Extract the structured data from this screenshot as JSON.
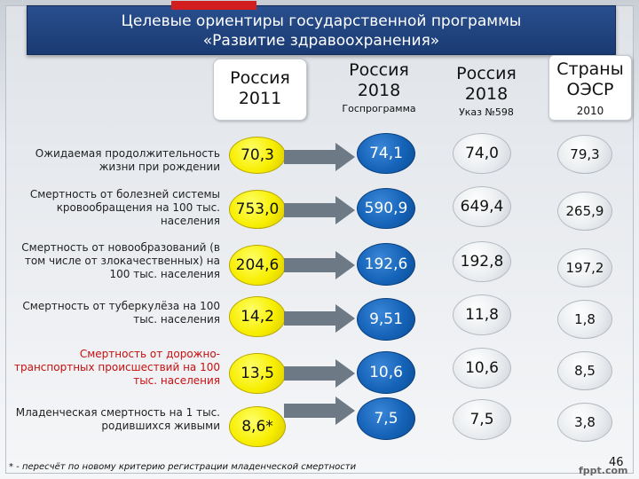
{
  "title": {
    "line1": "Целевые ориентиры государственной программы",
    "line2": "«Развитие здравоохранения»"
  },
  "columns": [
    {
      "line1": "Россия",
      "line2": "2011",
      "sub": ""
    },
    {
      "line1": "Россия",
      "line2": "2018",
      "sub": "Госпрограмма"
    },
    {
      "line1": "Россия",
      "line2": "2018",
      "sub": "Указ №598"
    },
    {
      "line1": "Страны",
      "line2": "ОЭСР",
      "sub": "2010"
    }
  ],
  "rows": [
    {
      "label": "Ожидаемая продолжительность жизни при рождении",
      "red": false,
      "v2011": "70,3",
      "v2018gp": "74,1",
      "v2018ukaz": "74,0",
      "voecd": "79,3"
    },
    {
      "label": "Смертность от болезней системы кровообращения на 100 тыс. населения",
      "red": false,
      "v2011": "753,0",
      "v2018gp": "590,9",
      "v2018ukaz": "649,4",
      "voecd": "265,9"
    },
    {
      "label": "Смертность от новообразований (в том числе от злокачественных) на 100 тыс. населения",
      "red": false,
      "v2011": "204,6",
      "v2018gp": "192,6",
      "v2018ukaz": "192,8",
      "voecd": "197,2"
    },
    {
      "label": "Смертность от туберкулёза на 100 тыс. населения",
      "red": false,
      "v2011": "14,2",
      "v2018gp": "9,51",
      "v2018ukaz": "11,8",
      "voecd": "1,8"
    },
    {
      "label": "Смертность от дорожно-транспортных происшествий на 100 тыс. населения",
      "red": true,
      "v2011": "13,5",
      "v2018gp": "10,6",
      "v2018ukaz": "10,6",
      "voecd": "8,5"
    },
    {
      "label": "Младенческая смертность на 1 тыс. родившихся живыми",
      "red": false,
      "v2011": "8,6*",
      "v2018gp": "7,5",
      "v2018ukaz": "7,5",
      "voecd": "3,8"
    }
  ],
  "footnote": "* - пересчёт по новому критерию регистрации младенческой смертности",
  "page_number": "46",
  "watermark": "fppt.com",
  "colors": {
    "title_bg": "#1a3a72",
    "accent_red": "#d21e1e",
    "yellow": "#f7ee00",
    "blue": "#1563b8",
    "arrow": "#6d7a86"
  }
}
